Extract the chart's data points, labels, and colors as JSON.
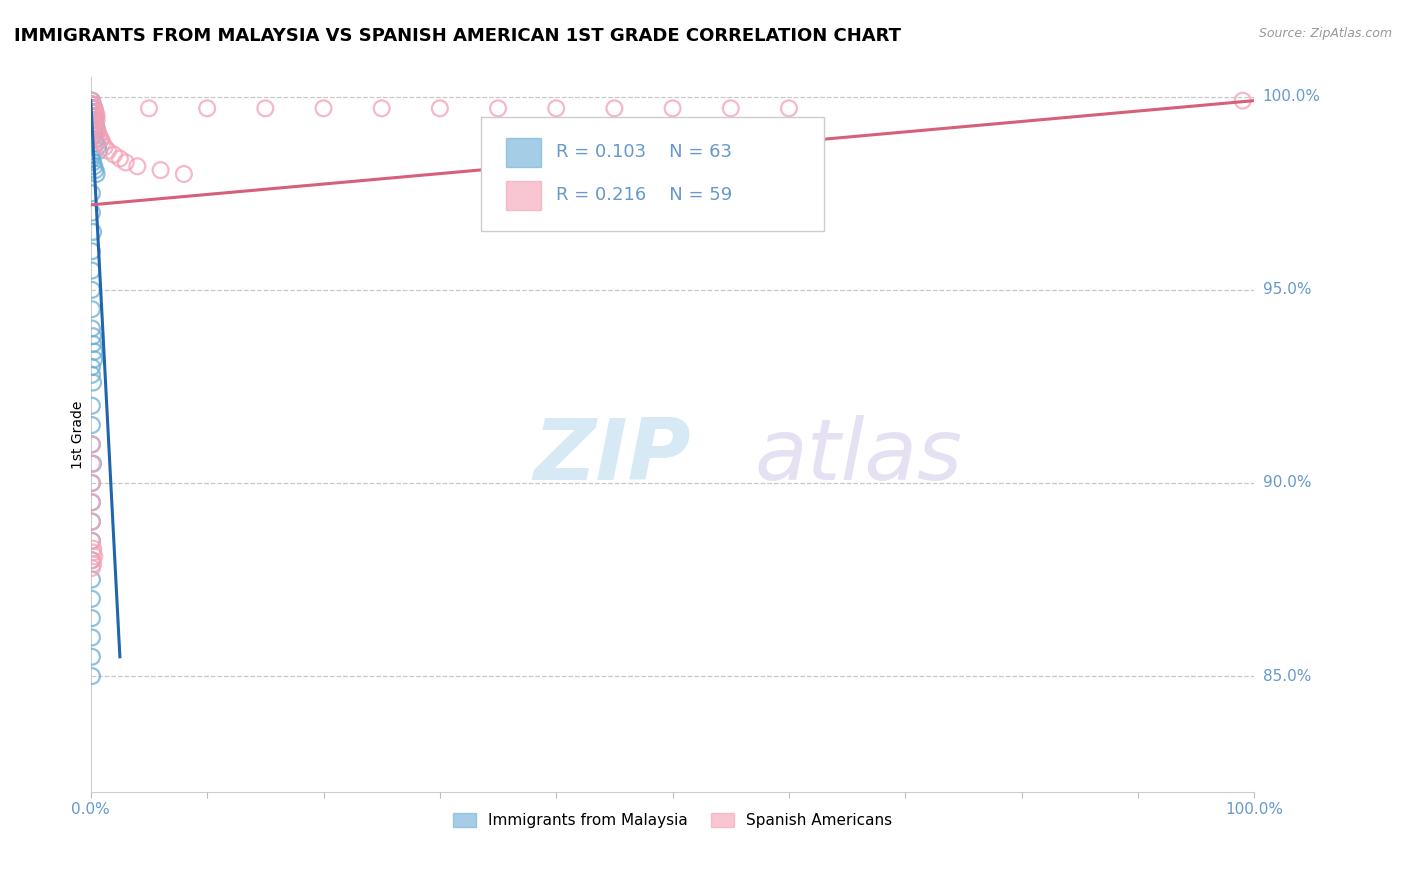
{
  "title": "IMMIGRANTS FROM MALAYSIA VS SPANISH AMERICAN 1ST GRADE CORRELATION CHART",
  "source": "Source: ZipAtlas.com",
  "ylabel": "1st Grade",
  "xlim": [
    0.0,
    1.0
  ],
  "ylim": [
    0.82,
    1.005
  ],
  "yticks": [
    0.85,
    0.9,
    0.95,
    1.0
  ],
  "ytick_labels": [
    "85.0%",
    "90.0%",
    "95.0%",
    "100.0%"
  ],
  "xticks": [
    0.0,
    0.1,
    0.2,
    0.3,
    0.4,
    0.5,
    0.6,
    0.7,
    0.8,
    0.9,
    1.0
  ],
  "xtick_labels": [
    "0.0%",
    "",
    "",
    "",
    "",
    "",
    "",
    "",
    "",
    "",
    "100.0%"
  ],
  "legend1_label": "Immigrants from Malaysia",
  "legend2_label": "Spanish Americans",
  "R_blue": 0.103,
  "N_blue": 63,
  "R_pink": 0.216,
  "N_pink": 59,
  "blue_color": "#6aaed6",
  "pink_color": "#f4a0b5",
  "blue_line_color": "#2166ac",
  "pink_line_color": "#d6607a",
  "grid_color": "#bbbbbb",
  "background_color": "#ffffff",
  "title_fontsize": 13,
  "tick_label_color": "#6699cc",
  "watermark_zip": "ZIP",
  "watermark_atlas": "atlas",
  "blue_scatter_x": [
    0.001,
    0.001,
    0.001,
    0.002,
    0.002,
    0.003,
    0.003,
    0.004,
    0.004,
    0.001,
    0.001,
    0.001,
    0.002,
    0.002,
    0.003,
    0.003,
    0.004,
    0.005,
    0.001,
    0.001,
    0.002,
    0.002,
    0.003,
    0.004,
    0.005,
    0.006,
    0.007,
    0.001,
    0.001,
    0.002,
    0.003,
    0.004,
    0.005,
    0.001,
    0.001,
    0.002,
    0.001,
    0.001,
    0.001,
    0.001,
    0.001,
    0.002,
    0.002,
    0.003,
    0.003,
    0.001,
    0.001,
    0.002,
    0.001,
    0.001,
    0.001,
    0.002,
    0.001,
    0.001,
    0.001,
    0.001,
    0.001,
    0.001,
    0.001,
    0.001,
    0.001,
    0.001,
    0.001
  ],
  "blue_scatter_y": [
    0.999,
    0.998,
    0.997,
    0.998,
    0.997,
    0.997,
    0.996,
    0.996,
    0.995,
    0.996,
    0.995,
    0.994,
    0.995,
    0.994,
    0.994,
    0.993,
    0.993,
    0.992,
    0.992,
    0.991,
    0.991,
    0.99,
    0.99,
    0.989,
    0.988,
    0.987,
    0.986,
    0.985,
    0.984,
    0.983,
    0.982,
    0.981,
    0.98,
    0.975,
    0.97,
    0.965,
    0.96,
    0.955,
    0.95,
    0.945,
    0.94,
    0.938,
    0.936,
    0.934,
    0.932,
    0.93,
    0.928,
    0.926,
    0.92,
    0.915,
    0.91,
    0.905,
    0.9,
    0.895,
    0.89,
    0.885,
    0.88,
    0.875,
    0.87,
    0.865,
    0.86,
    0.855,
    0.85
  ],
  "pink_scatter_x": [
    0.001,
    0.001,
    0.001,
    0.001,
    0.001,
    0.002,
    0.002,
    0.003,
    0.003,
    0.004,
    0.004,
    0.005,
    0.005,
    0.001,
    0.001,
    0.001,
    0.001,
    0.002,
    0.05,
    0.1,
    0.15,
    0.2,
    0.25,
    0.3,
    0.35,
    0.4,
    0.45,
    0.5,
    0.55,
    0.6,
    0.003,
    0.004,
    0.005,
    0.006,
    0.007,
    0.008,
    0.009,
    0.01,
    0.012,
    0.015,
    0.02,
    0.025,
    0.03,
    0.04,
    0.06,
    0.08,
    0.001,
    0.001,
    0.001,
    0.001,
    0.001,
    0.001,
    0.002,
    0.002,
    0.003,
    0.001,
    0.002,
    0.99,
    0.001
  ],
  "pink_scatter_y": [
    0.999,
    0.998,
    0.997,
    0.996,
    0.995,
    0.998,
    0.997,
    0.997,
    0.996,
    0.996,
    0.995,
    0.995,
    0.994,
    0.994,
    0.993,
    0.992,
    0.991,
    0.993,
    0.997,
    0.997,
    0.997,
    0.997,
    0.997,
    0.997,
    0.997,
    0.997,
    0.997,
    0.997,
    0.997,
    0.997,
    0.993,
    0.992,
    0.991,
    0.991,
    0.99,
    0.989,
    0.989,
    0.988,
    0.987,
    0.986,
    0.985,
    0.984,
    0.983,
    0.982,
    0.981,
    0.98,
    0.91,
    0.905,
    0.9,
    0.895,
    0.89,
    0.885,
    0.883,
    0.882,
    0.881,
    0.88,
    0.879,
    0.999,
    0.878
  ]
}
